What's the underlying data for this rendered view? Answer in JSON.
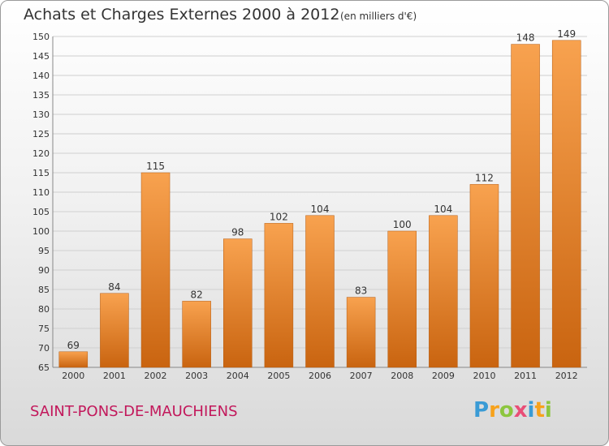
{
  "header": {
    "title": "Achats et Charges Externes 2000 à 2012",
    "subtitle": "(en milliers d'€)"
  },
  "footer": {
    "commune": "SAINT-PONS-DE-MAUCHIENS",
    "logo_letters": [
      "P",
      "r",
      "o",
      "x",
      "i",
      "t",
      "i"
    ],
    "logo_colors": [
      "#3a9bd5",
      "#f7a21b",
      "#8cc63f",
      "#e94e77",
      "#3a9bd5",
      "#f7a21b",
      "#8cc63f"
    ]
  },
  "chart_data": {
    "type": "bar",
    "title": "Achats et Charges Externes 2000 à 2012",
    "subtitle": "(en milliers d'€)",
    "categories": [
      "2000",
      "2001",
      "2002",
      "2003",
      "2004",
      "2005",
      "2006",
      "2007",
      "2008",
      "2009",
      "2010",
      "2011",
      "2012"
    ],
    "values": [
      69,
      84,
      115,
      82,
      98,
      102,
      104,
      83,
      100,
      104,
      112,
      148,
      149
    ],
    "ylim": [
      65,
      150
    ],
    "yticks": [
      65,
      70,
      75,
      80,
      85,
      90,
      95,
      100,
      105,
      110,
      115,
      120,
      125,
      130,
      135,
      140,
      145,
      150
    ],
    "grid": true,
    "colors": {
      "bar_light": "#f8a24f",
      "bar_dark": "#c96410",
      "grid": "#cfcfcf"
    }
  }
}
